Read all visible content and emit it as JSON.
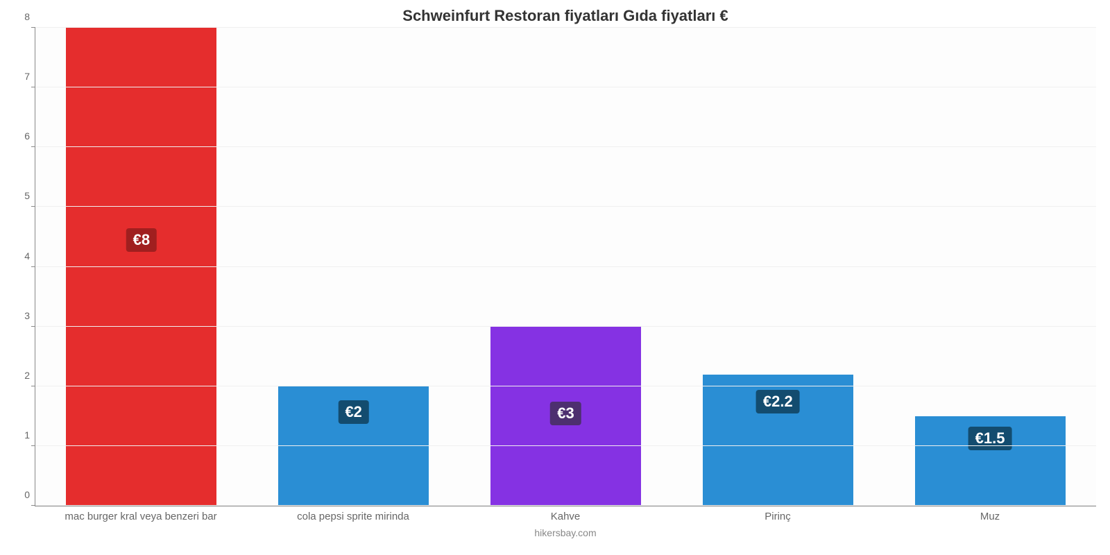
{
  "chart": {
    "type": "bar",
    "title": "Schweinfurt Restoran fiyatları Gıda fiyatları €",
    "title_fontsize": 22,
    "title_color": "#333333",
    "footer": "hikersbay.com",
    "footer_color": "#888888",
    "background_color": "#fdfdfd",
    "axis_color": "#888888",
    "grid_color": "#f0f0f0",
    "ylim": [
      0,
      8
    ],
    "ytick_step": 1,
    "ytick_color": "#666666",
    "ytick_fontsize": 14,
    "category_label_color": "#666666",
    "category_label_fontsize": 15,
    "value_label_fontsize": 22,
    "bar_width_pct": 14.2,
    "slot_width_pct": 20,
    "categories": [
      "mac burger kral veya benzeri bar",
      "cola pepsi sprite mirinda",
      "Kahve",
      "Pirinç",
      "Muz"
    ],
    "values": [
      8,
      2,
      3,
      2.2,
      1.5
    ],
    "value_labels": [
      "€8",
      "€2",
      "€3",
      "€2.2",
      "€1.5"
    ],
    "bar_colors": [
      "#e52d2d",
      "#2a8ed4",
      "#8532e3",
      "#2a8ed4",
      "#2a8ed4"
    ],
    "label_bg_colors": [
      "#a01f1f",
      "#134c6f",
      "#4d2f6f",
      "#134c6f",
      "#134c6f"
    ]
  }
}
